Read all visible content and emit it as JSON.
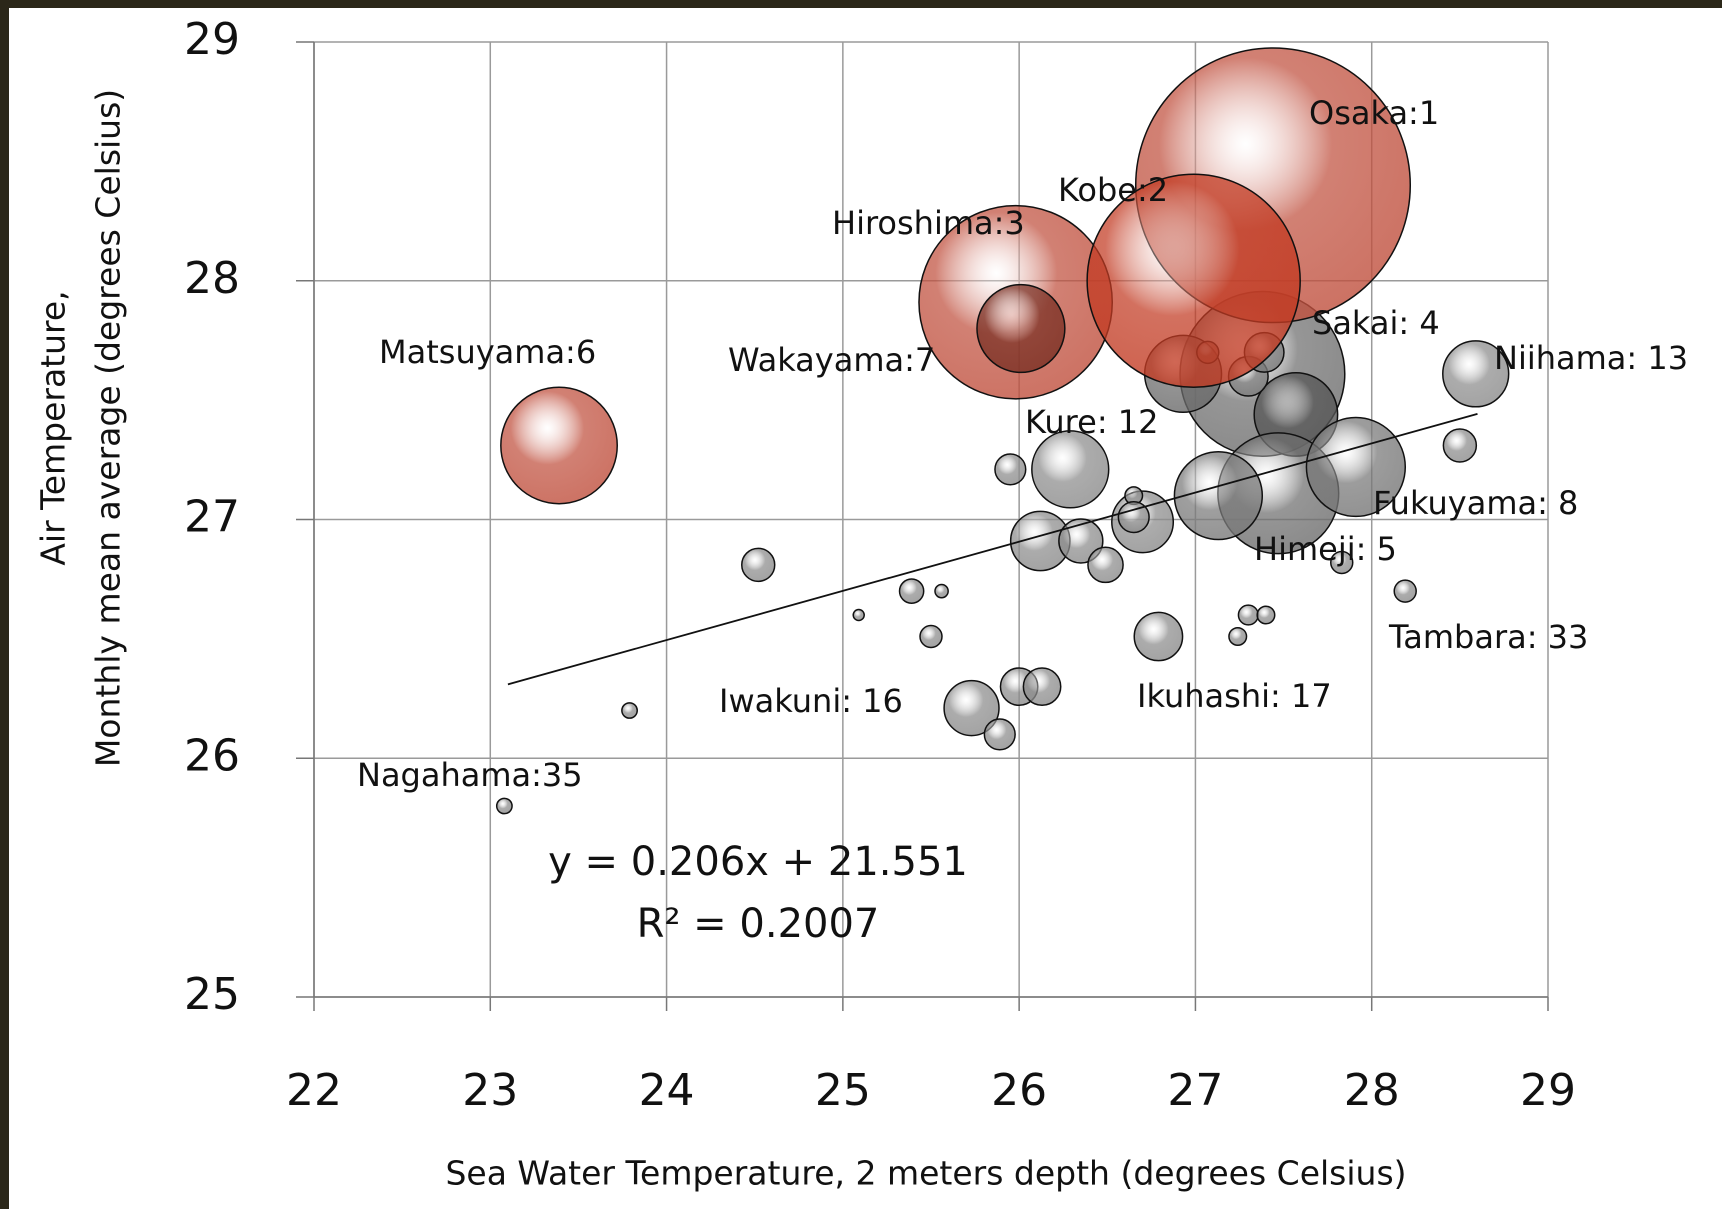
{
  "chart_data": {
    "type": "bubble",
    "x_label": "Sea Water Temperature, 2 meters depth (degrees Celsius)",
    "y_label": [
      "Air Temperature,",
      "Monthly mean average (degrees Celsius)"
    ],
    "xlim": [
      22,
      29
    ],
    "xticks": [
      22,
      23,
      24,
      25,
      26,
      27,
      28,
      29
    ],
    "ylim": [
      25,
      29
    ],
    "yticks": [
      25,
      26,
      27,
      28,
      29
    ],
    "grid": true,
    "x": [
      27.38,
      27.57,
      27.47,
      27.91,
      27.13,
      26.93,
      27.07,
      27.3,
      27.39,
      28.59,
      26.29,
      26.7,
      26.65,
      26.65,
      26.12,
      26.35,
      26.49,
      25.95,
      24.52,
      25.39,
      25.56,
      25.09,
      25.5,
      26.79,
      27.24,
      27.3,
      27.4,
      27.83,
      28.19,
      28.5,
      26.0,
      26.13,
      25.73,
      25.89,
      23.79,
      23.08,
      23.39,
      25.98,
      26.01,
      27.44,
      26.99
    ],
    "y": [
      27.61,
      27.44,
      27.11,
      27.22,
      27.1,
      27.61,
      27.7,
      27.6,
      27.7,
      27.61,
      27.21,
      26.99,
      27.1,
      27.01,
      26.91,
      26.91,
      26.81,
      27.21,
      26.81,
      26.7,
      26.7,
      26.6,
      26.51,
      26.51,
      26.51,
      26.6,
      26.6,
      26.82,
      26.7,
      27.31,
      26.3,
      26.3,
      26.21,
      26.1,
      26.2,
      25.8,
      27.31,
      27.91,
      27.8,
      28.4,
      28.0
    ],
    "sizes": [
      75,
      38,
      55,
      45,
      40,
      35,
      10,
      18,
      18,
      30,
      35,
      28,
      8,
      14,
      27,
      20,
      16,
      14,
      15,
      11,
      6,
      5,
      10,
      22,
      8,
      9,
      8,
      10,
      10,
      15,
      17,
      17,
      25,
      14,
      7,
      7,
      53,
      88,
      40,
      125,
      97
    ],
    "colors": [
      "#6e6e6e",
      "#555555",
      "#6e6e6e",
      "#777777",
      "#7a7a7a",
      "#6a6a6a",
      "#8a5a50",
      "#7a7a7a",
      "#7a7a7a",
      "#8c8c8c",
      "#8c8c8c",
      "#8c8c8c",
      "#8c8c8c",
      "#8c8c8c",
      "#8c8c8c",
      "#8c8c8c",
      "#8c8c8c",
      "#8c8c8c",
      "#8c8c8c",
      "#8c8c8c",
      "#8c8c8c",
      "#8c8c8c",
      "#8c8c8c",
      "#8c8c8c",
      "#8c8c8c",
      "#8c8c8c",
      "#8c8c8c",
      "#8c8c8c",
      "#8c8c8c",
      "#8c8c8c",
      "#8c8c8c",
      "#8c8c8c",
      "#8c8c8c",
      "#8c8c8c",
      "#8c8c8c",
      "#8c8c8c",
      "#c0503e",
      "#c0503e",
      "#7a3024",
      "#c0503e",
      "#c23a22"
    ],
    "annotations": [
      "Osaka:1",
      "Kobe:2",
      "Hiroshima:3",
      "Matsuyama:6",
      "Wakayama:7",
      "Sakai: 4",
      "Niihama: 13",
      "Kure: 12",
      "Fukuyama: 8",
      "Himeji: 5",
      "Tambara: 33",
      "Ikuhashi: 17",
      "Iwakuni: 16",
      "Nagahama:35"
    ],
    "trendline": {
      "slope": 0.206,
      "intercept": 21.551,
      "xrange": [
        23.1,
        28.6
      ],
      "equation": "y = 0.206x + 21.551",
      "r2": "R² = 0.2007"
    }
  }
}
